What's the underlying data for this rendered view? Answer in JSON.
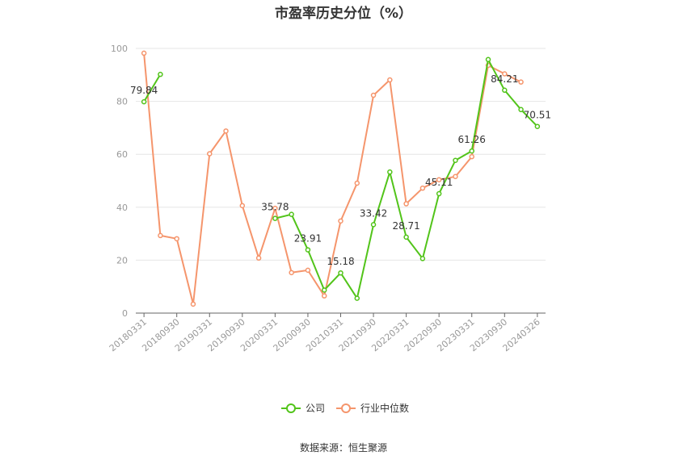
{
  "title": "市盈率历史分位（%）",
  "source": {
    "label": "数据来源：",
    "value": "恒生聚源"
  },
  "chart_data": {
    "type": "line",
    "title": "市盈率历史分位（%）",
    "xlabel": "",
    "ylabel": "",
    "ylim": [
      0,
      100
    ],
    "yticks": [
      0,
      20,
      40,
      60,
      80,
      100
    ],
    "grid": true,
    "legend_position": "bottom",
    "categories": [
      "20180331",
      "20180630",
      "20180930",
      "20181231",
      "20190331",
      "20190630",
      "20190930",
      "20191231",
      "20200331",
      "20200630",
      "20200930",
      "20201231",
      "20210331",
      "20210630",
      "20210930",
      "20211231",
      "20220331",
      "20220630",
      "20220930",
      "20221231",
      "20230331",
      "20230630",
      "20230930",
      "20231231",
      "20240326"
    ],
    "tick_labels": [
      "20180331",
      "20180930",
      "20190331",
      "20190930",
      "20200331",
      "20200930",
      "20210331",
      "20210930",
      "20220331",
      "20220930",
      "20230331",
      "20230930",
      "20240326"
    ],
    "tick_indices": [
      0,
      2,
      4,
      6,
      8,
      10,
      12,
      14,
      16,
      18,
      20,
      22,
      24
    ],
    "series": [
      {
        "name": "公司",
        "color": "#52c41a",
        "values": [
          79.84,
          90.2,
          null,
          null,
          null,
          null,
          null,
          null,
          35.78,
          37.3,
          23.91,
          8.7,
          15.18,
          5.6,
          33.42,
          53.3,
          28.71,
          20.6,
          45.11,
          57.7,
          61.26,
          95.8,
          84.21,
          76.9,
          70.51
        ],
        "labels": [
          {
            "index": 0,
            "text": "79.84"
          },
          {
            "index": 8,
            "text": "35.78"
          },
          {
            "index": 10,
            "text": "23.91"
          },
          {
            "index": 12,
            "text": "15.18"
          },
          {
            "index": 14,
            "text": "33.42"
          },
          {
            "index": 16,
            "text": "28.71"
          },
          {
            "index": 18,
            "text": "45.11"
          },
          {
            "index": 20,
            "text": "61.26"
          },
          {
            "index": 22,
            "text": "84.21"
          },
          {
            "index": 24,
            "text": "70.51"
          }
        ]
      },
      {
        "name": "行业中位数",
        "color": "#f5956c",
        "values": [
          98.2,
          29.3,
          28.1,
          3.4,
          60.2,
          68.8,
          40.6,
          20.8,
          39.6,
          15.3,
          16.2,
          6.5,
          34.8,
          49.1,
          82.3,
          88.1,
          41.3,
          47.2,
          50.4,
          51.6,
          59.1,
          93.6,
          90.4,
          87.3,
          null
        ]
      }
    ]
  }
}
